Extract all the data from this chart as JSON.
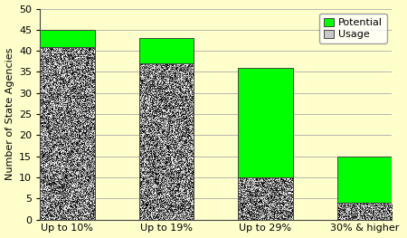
{
  "categories": [
    "Up to 10%",
    "Up to 19%",
    "Up to 29%",
    "30% & higher"
  ],
  "usage_values": [
    41,
    37,
    10,
    4
  ],
  "potential_values": [
    4,
    6,
    26,
    11
  ],
  "usage_color": "#c8c8c8",
  "potential_color": "#00ff00",
  "background_color": "#ffffcc",
  "ylabel": "Number of State Agencies",
  "ylim": [
    0,
    50
  ],
  "yticks": [
    0,
    5,
    10,
    15,
    20,
    25,
    30,
    35,
    40,
    45,
    50
  ],
  "legend_potential": "Potential",
  "legend_usage": "Usage",
  "bar_width": 0.55,
  "grid_color": "#aaaaaa",
  "edge_color": "#444444",
  "speckle_density": 2000,
  "speckle_dark": "#444444",
  "speckle_light": "#f0f0f0"
}
